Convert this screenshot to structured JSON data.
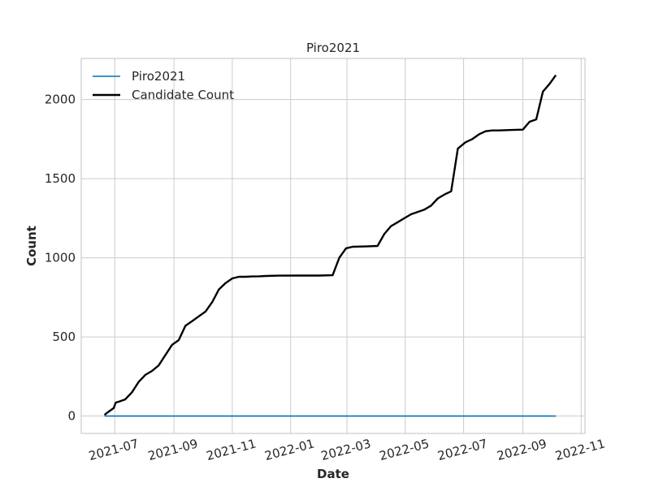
{
  "chart_data": {
    "type": "line",
    "title": "Piro2021",
    "xlabel": "Date",
    "ylabel": "Count",
    "xlim": [
      "2021-05-27",
      "2022-11-05"
    ],
    "ylim": [
      -110,
      2260
    ],
    "grid": true,
    "legend_placement": "top-left",
    "x_ticks": [
      "2021-07-01",
      "2021-09-01",
      "2021-11-01",
      "2022-01-01",
      "2022-03-01",
      "2022-05-01",
      "2022-07-01",
      "2022-09-01",
      "2022-11-01"
    ],
    "x_tick_labels": [
      "2021-07",
      "2021-09",
      "2021-11",
      "2022-01",
      "2022-03",
      "2022-05",
      "2022-07",
      "2022-09",
      "2022-11"
    ],
    "y_ticks": [
      0,
      500,
      1000,
      1500,
      2000
    ],
    "series": [
      {
        "name": "Piro2021",
        "color": "#0072b2",
        "x": [
          "2021-06-21",
          "2022-10-05"
        ],
        "y": [
          0,
          0
        ]
      },
      {
        "name": "Candidate Count",
        "color": "#000000",
        "x": [
          "2021-06-21",
          "2021-06-24",
          "2021-06-30",
          "2021-07-02",
          "2021-07-05",
          "2021-07-12",
          "2021-07-19",
          "2021-07-26",
          "2021-08-02",
          "2021-08-09",
          "2021-08-16",
          "2021-08-23",
          "2021-08-30",
          "2021-09-06",
          "2021-09-13",
          "2021-09-20",
          "2021-09-27",
          "2021-10-04",
          "2021-10-11",
          "2021-10-18",
          "2021-10-25",
          "2021-11-01",
          "2021-11-08",
          "2021-11-15",
          "2021-11-22",
          "2021-11-29",
          "2021-12-06",
          "2021-12-20",
          "2022-01-10",
          "2022-01-31",
          "2022-02-14",
          "2022-02-21",
          "2022-02-28",
          "2022-03-07",
          "2022-03-21",
          "2022-04-02",
          "2022-04-09",
          "2022-04-16",
          "2022-04-23",
          "2022-04-30",
          "2022-05-07",
          "2022-05-14",
          "2022-05-21",
          "2022-05-28",
          "2022-06-04",
          "2022-06-11",
          "2022-06-18",
          "2022-06-25",
          "2022-06-29",
          "2022-07-03",
          "2022-07-10",
          "2022-07-17",
          "2022-07-24",
          "2022-07-31",
          "2022-08-07",
          "2022-08-21",
          "2022-09-01",
          "2022-09-08",
          "2022-09-15",
          "2022-09-22",
          "2022-09-29",
          "2022-10-05"
        ],
        "y": [
          10,
          25,
          50,
          85,
          90,
          105,
          150,
          215,
          260,
          285,
          320,
          385,
          450,
          480,
          570,
          600,
          630,
          660,
          720,
          800,
          840,
          870,
          880,
          880,
          882,
          883,
          885,
          887,
          888,
          888,
          890,
          1000,
          1060,
          1070,
          1072,
          1075,
          1150,
          1200,
          1225,
          1250,
          1275,
          1290,
          1305,
          1330,
          1375,
          1400,
          1420,
          1690,
          1710,
          1730,
          1750,
          1780,
          1800,
          1805,
          1805,
          1808,
          1810,
          1860,
          1875,
          2050,
          2100,
          2150
        ]
      }
    ]
  }
}
